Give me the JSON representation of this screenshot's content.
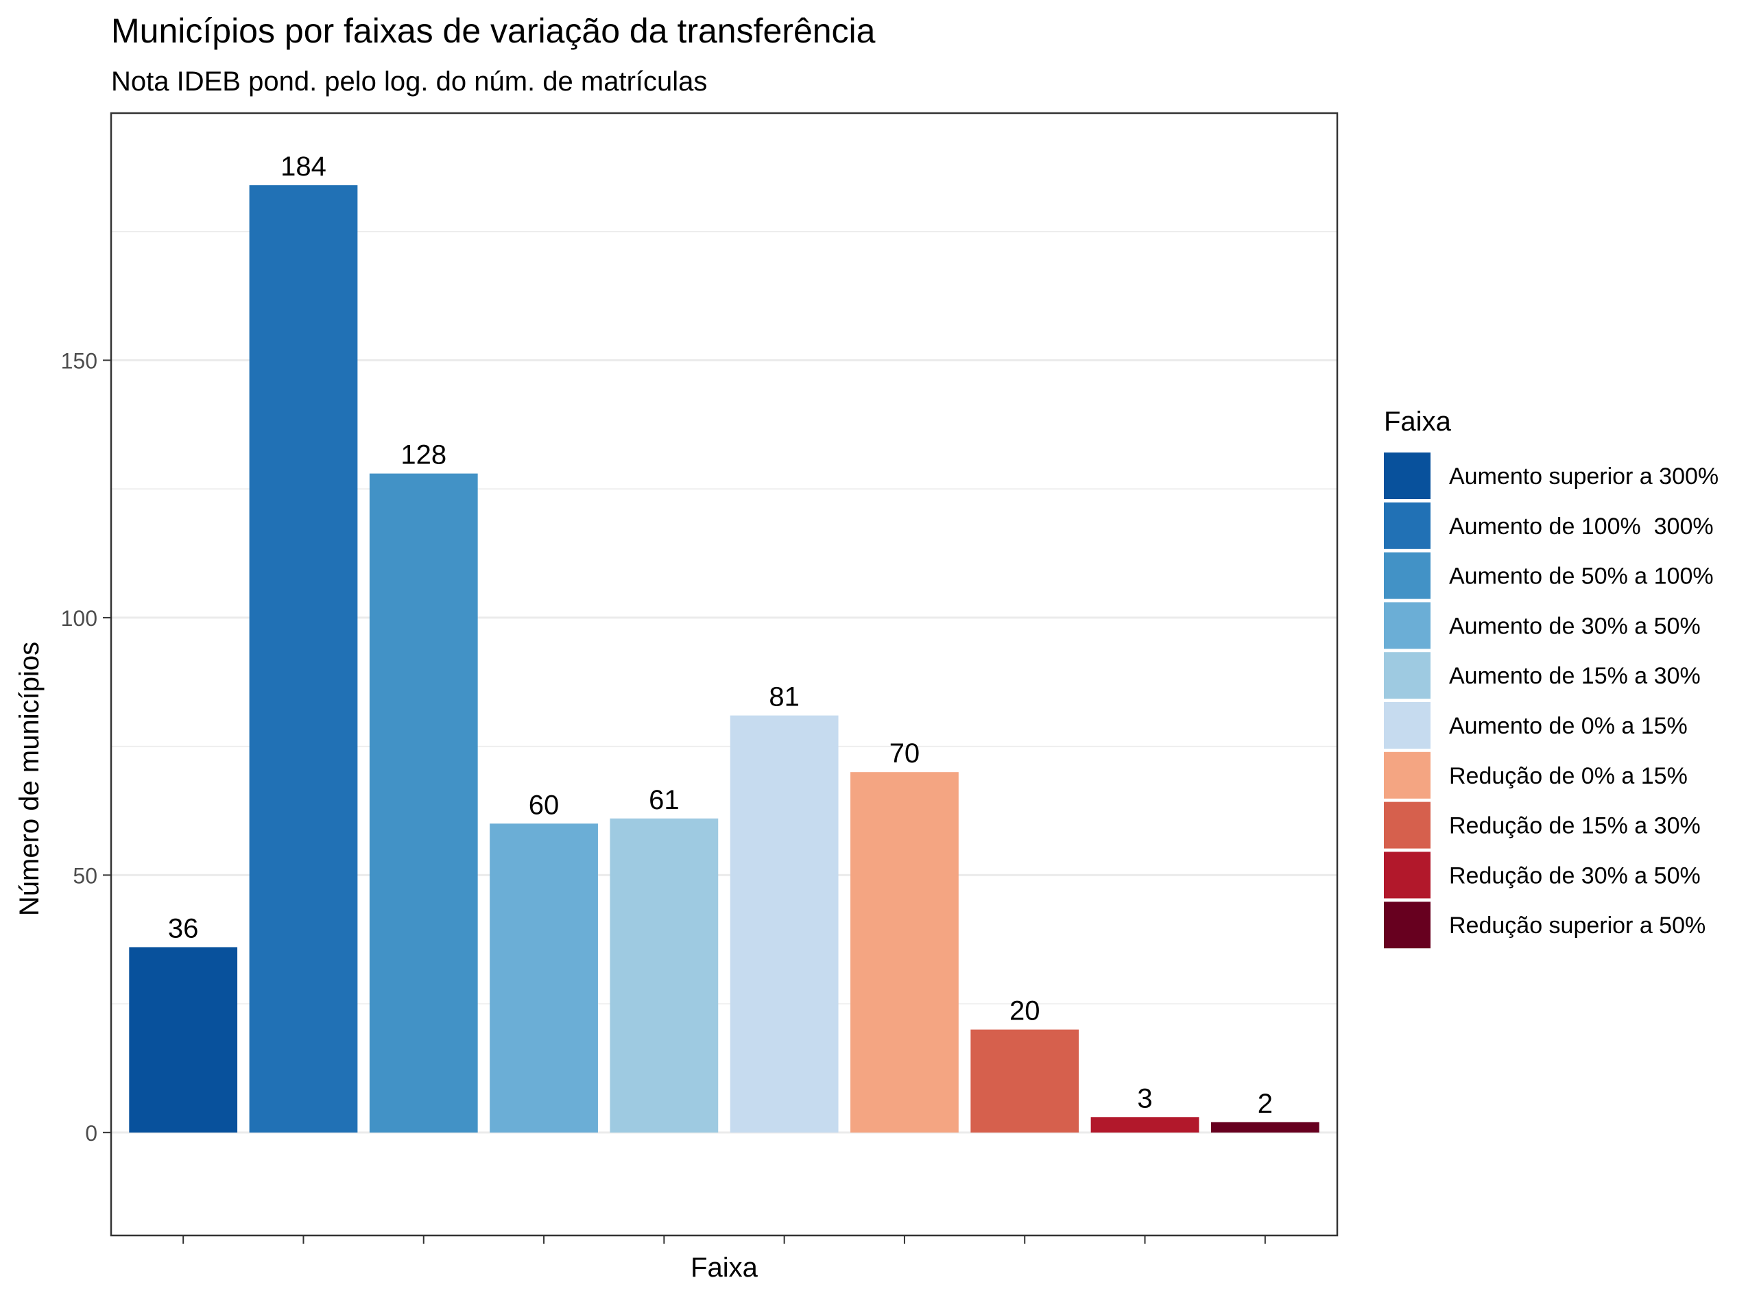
{
  "chart_data": {
    "type": "bar",
    "title": "Municípios por faixas de variação da transferência",
    "subtitle": "Nota IDEB pond. pelo log. do núm. de matrículas",
    "xlabel": "Faixa",
    "ylabel": "Número de municípios",
    "ylim": [
      -20,
      198
    ],
    "yticks": [
      0,
      50,
      100,
      150
    ],
    "grid": true,
    "legend_title": "Faixa",
    "legend_position": "right",
    "categories": [
      "Aumento superior a 300%",
      "Aumento de 100%  300%",
      "Aumento de 50% a 100%",
      "Aumento de 30% a 50%",
      "Aumento de 15% a 30%",
      "Aumento de 0% a 15%",
      "Redução de 0% a 15%",
      "Redução de 15% a 30%",
      "Redução de 30% a 50%",
      "Redução superior a 50%"
    ],
    "values": [
      36,
      184,
      128,
      60,
      61,
      81,
      70,
      20,
      3,
      2
    ],
    "colors": [
      "#08519c",
      "#2171b5",
      "#4292c6",
      "#6baed6",
      "#9ecae1",
      "#c6dbef",
      "#f4a582",
      "#d6604d",
      "#b2182b",
      "#67001f"
    ]
  }
}
